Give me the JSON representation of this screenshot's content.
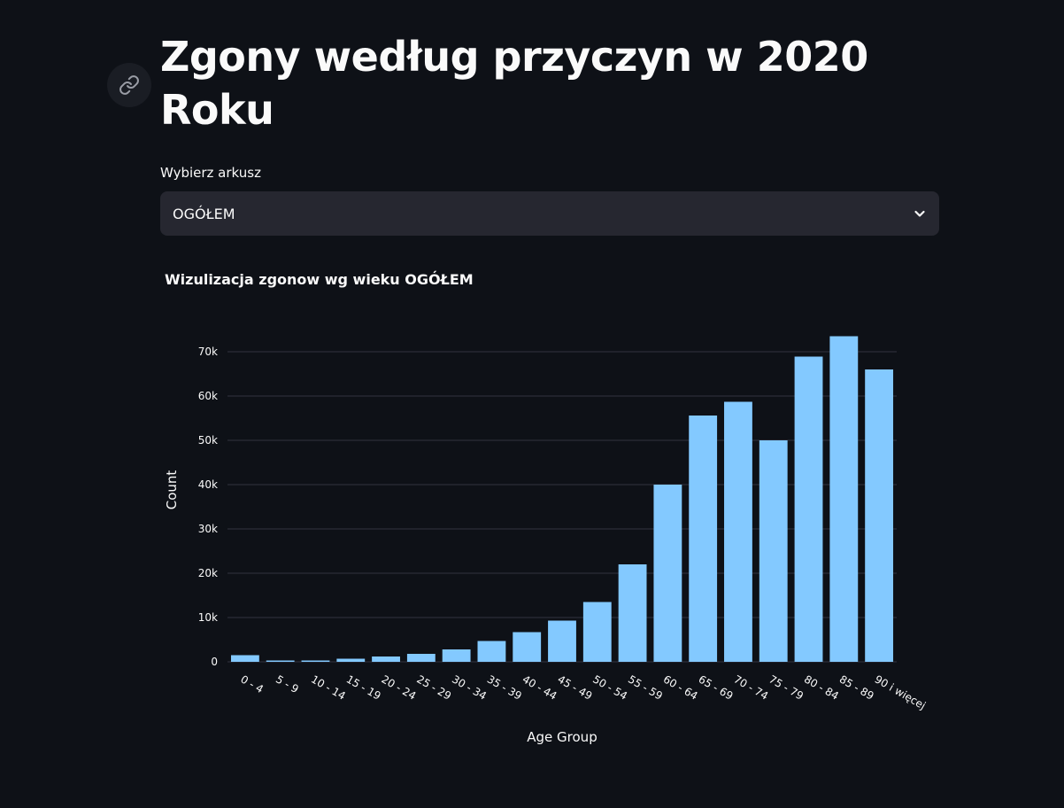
{
  "header": {
    "title": "Zgony według przyczyn w 2020 Roku"
  },
  "selector": {
    "label": "Wybierz arkusz",
    "value": "OGÓŁEM"
  },
  "chart_data": {
    "type": "bar",
    "title": "Wizulizacja zgonow wg wieku OGÓŁEM",
    "xlabel": "Age Group",
    "ylabel": "Count",
    "ylim": [
      0,
      75000
    ],
    "yticks": [
      0,
      10000,
      20000,
      30000,
      40000,
      50000,
      60000,
      70000
    ],
    "ytick_labels": [
      "0",
      "10k",
      "20k",
      "30k",
      "40k",
      "50k",
      "60k",
      "70k"
    ],
    "grid": true,
    "bar_color": "#83c9ff",
    "categories": [
      "0 - 4",
      "5 - 9",
      "10 - 14",
      "15 - 19",
      "20 - 24",
      "25 - 29",
      "30 - 34",
      "35 - 39",
      "40 - 44",
      "45 - 49",
      "50 - 54",
      "55 - 59",
      "60 - 64",
      "65 - 69",
      "70 - 74",
      "75 - 79",
      "80 - 84",
      "85 - 89",
      "90 i więcej"
    ],
    "values": [
      1500,
      300,
      300,
      700,
      1200,
      1800,
      2800,
      4700,
      6700,
      9300,
      13500,
      22000,
      40000,
      55600,
      58700,
      50000,
      68900,
      73500,
      66000
    ]
  },
  "colors": {
    "background": "#0e1117",
    "select_background": "#262730",
    "gridline": "#31333f",
    "text": "#fafafa"
  },
  "icons": {
    "anchor": "link-icon",
    "select": "chevron-down-icon"
  }
}
